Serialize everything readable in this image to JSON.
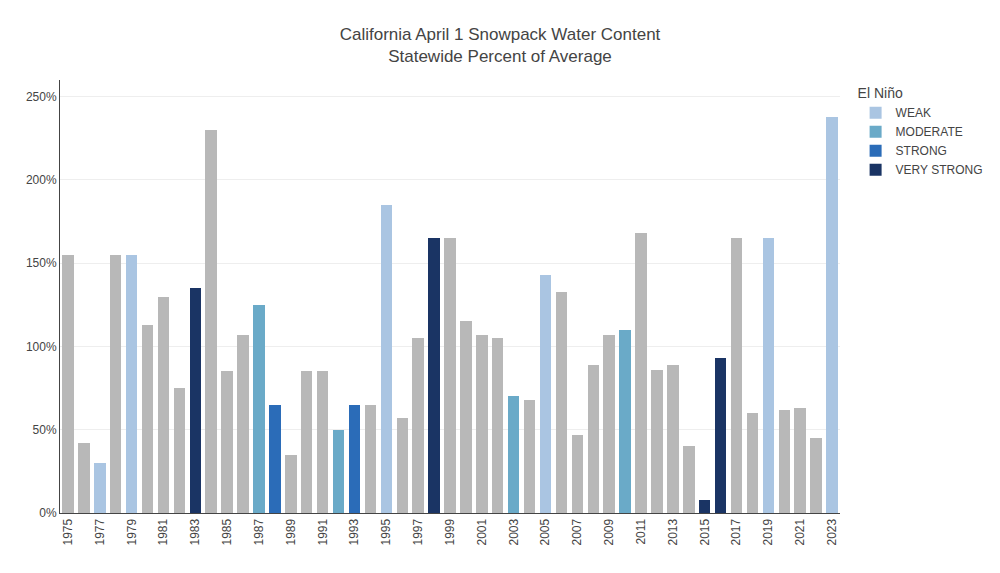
{
  "chart_data": {
    "type": "bar",
    "title": "California April 1 Snowpack Water Content\nStatewide Percent of Average",
    "categories": [
      "1975",
      null,
      "1977",
      null,
      "1979",
      null,
      "1981",
      null,
      "1983",
      null,
      "1985",
      null,
      "1987",
      null,
      "1989",
      null,
      "1991",
      null,
      "1993",
      null,
      "1995",
      null,
      "1997",
      null,
      "1999",
      null,
      "2001",
      null,
      "2003",
      null,
      "2005",
      null,
      "2007",
      null,
      "2009",
      null,
      "2011",
      null,
      "2013",
      null,
      "2015",
      null,
      "2017",
      null,
      "2019",
      null,
      "2021",
      null,
      "2023"
    ],
    "series": [
      {
        "color": "#b8b8b8",
        "values": [
          155,
          42,
          null,
          155,
          null,
          113,
          130,
          75,
          null,
          230,
          85,
          107,
          null,
          null,
          35,
          85,
          85,
          null,
          null,
          65,
          null,
          57,
          105,
          null,
          165,
          115,
          107,
          105,
          null,
          68,
          null,
          133,
          47,
          89,
          107,
          null,
          168,
          86,
          89,
          40,
          null,
          null,
          165,
          60,
          null,
          62,
          63,
          45,
          null
        ]
      },
      {
        "name": "WEAK",
        "color": "#aac5e2",
        "values": [
          null,
          null,
          30,
          null,
          155,
          null,
          null,
          null,
          null,
          null,
          null,
          null,
          null,
          null,
          null,
          null,
          null,
          null,
          null,
          null,
          185,
          null,
          null,
          null,
          null,
          null,
          null,
          null,
          null,
          null,
          143,
          null,
          null,
          null,
          null,
          null,
          null,
          null,
          null,
          null,
          null,
          null,
          null,
          null,
          165,
          null,
          null,
          null,
          238
        ]
      },
      {
        "name": "MODERATE",
        "color": "#6aaac8",
        "values": [
          null,
          null,
          null,
          null,
          null,
          null,
          null,
          null,
          null,
          null,
          null,
          null,
          125,
          null,
          null,
          null,
          null,
          50,
          null,
          null,
          null,
          null,
          null,
          null,
          null,
          null,
          null,
          null,
          70,
          null,
          null,
          null,
          null,
          null,
          null,
          110,
          null,
          null,
          null,
          null,
          null,
          null,
          null,
          null,
          null,
          null,
          null,
          null,
          null
        ]
      },
      {
        "name": "STRONG",
        "color": "#2b6cb8",
        "values": [
          null,
          null,
          null,
          null,
          null,
          null,
          null,
          null,
          null,
          null,
          null,
          null,
          null,
          65,
          null,
          null,
          null,
          null,
          65,
          null,
          null,
          null,
          null,
          null,
          null,
          null,
          null,
          null,
          null,
          null,
          null,
          null,
          null,
          null,
          null,
          null,
          null,
          null,
          null,
          null,
          null,
          null,
          null,
          null,
          null,
          null,
          null,
          null,
          null
        ]
      },
      {
        "name": "VERY STRONG",
        "color": "#1a3464",
        "values": [
          null,
          null,
          null,
          null,
          null,
          null,
          null,
          null,
          135,
          null,
          null,
          null,
          null,
          null,
          null,
          null,
          null,
          null,
          null,
          null,
          null,
          null,
          null,
          165,
          null,
          null,
          null,
          null,
          null,
          null,
          null,
          null,
          null,
          null,
          null,
          null,
          null,
          null,
          null,
          null,
          8,
          93,
          null,
          null,
          null,
          null,
          null,
          null,
          null
        ]
      }
    ],
    "legend_title": "El Niño",
    "legend": "right",
    "ylim": [
      0,
      260
    ],
    "yticks": [
      {
        "value": 0,
        "label": "0%"
      },
      {
        "value": 50,
        "label": "50%"
      },
      {
        "value": 100,
        "label": "100%"
      },
      {
        "value": 150,
        "label": "150%"
      },
      {
        "value": 200,
        "label": "200%"
      },
      {
        "value": 250,
        "label": "250%"
      }
    ],
    "grid": true
  }
}
